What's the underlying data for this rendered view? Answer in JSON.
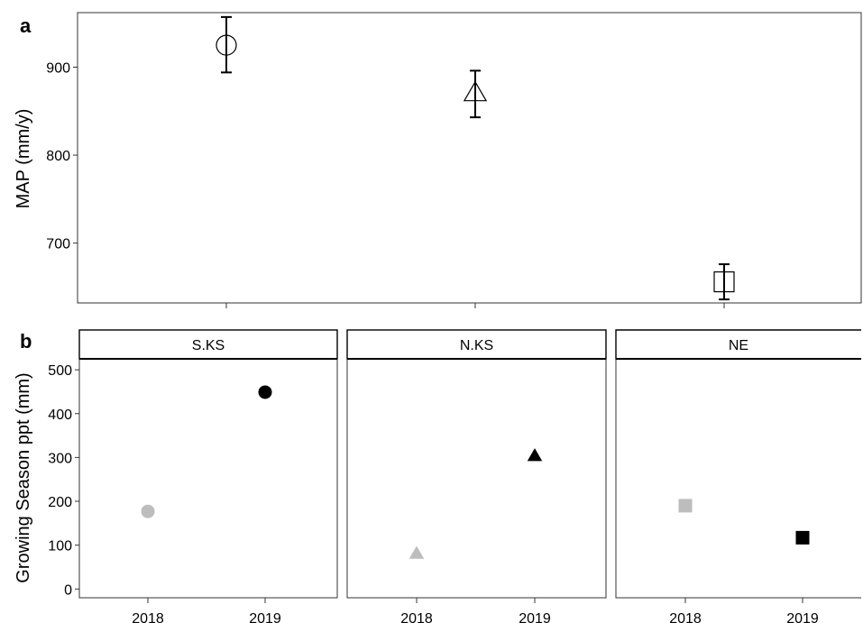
{
  "chart_data": [
    {
      "panel": "a",
      "type": "scatter",
      "ylabel": "MAP (mm/y)",
      "ylim": [
        632,
        962
      ],
      "yticks": [
        700,
        800,
        900
      ],
      "grid": false,
      "points": [
        {
          "x": 1,
          "y": 925,
          "lo": 894,
          "hi": 957,
          "marker": "circle-open"
        },
        {
          "x": 2,
          "y": 870,
          "lo": 843,
          "hi": 896,
          "marker": "triangle-open"
        },
        {
          "x": 3,
          "y": 656,
          "lo": 636,
          "hi": 676,
          "marker": "square-open"
        }
      ]
    },
    {
      "panel": "b",
      "type": "scatter",
      "ylabel": "Growing Season ppt (mm)",
      "ylim": [
        -20,
        525
      ],
      "yticks": [
        0,
        100,
        200,
        300,
        400,
        500
      ],
      "categories": [
        "2018",
        "2019"
      ],
      "grid": false,
      "facets": [
        {
          "label": "S.KS",
          "marker": "circle",
          "values": [
            177,
            449
          ],
          "colors": [
            "#bdbdbd",
            "#000000"
          ]
        },
        {
          "label": "N.KS",
          "marker": "triangle",
          "values": [
            80,
            303
          ],
          "colors": [
            "#bdbdbd",
            "#000000"
          ]
        },
        {
          "label": "NE",
          "marker": "square",
          "values": [
            190,
            117
          ],
          "colors": [
            "#bdbdbd",
            "#000000"
          ]
        }
      ]
    }
  ]
}
